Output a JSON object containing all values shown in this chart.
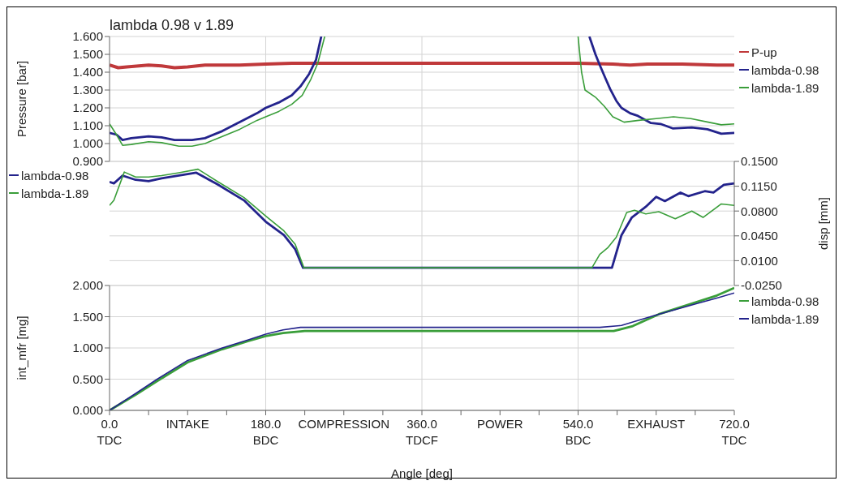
{
  "chart_data": [
    {
      "type": "line",
      "title": "lambda 0.98 v 1.89",
      "ylabel": "Pressure [bar]",
      "xlim": [
        0,
        720
      ],
      "ylim": [
        0.9,
        1.6
      ],
      "yticks": [
        {
          "value": 0.9,
          "label": "0.900"
        },
        {
          "value": 1.0,
          "label": "1.000"
        },
        {
          "value": 1.1,
          "label": "1.100"
        },
        {
          "value": 1.2,
          "label": "1.200"
        },
        {
          "value": 1.3,
          "label": "1.300"
        },
        {
          "value": 1.4,
          "label": "1.400"
        },
        {
          "value": 1.5,
          "label": "1.500"
        },
        {
          "value": 1.6,
          "label": "1.600"
        }
      ],
      "tick_labels": "y",
      "grid": "y",
      "legend": "right",
      "line_style": "solid",
      "marker": "none",
      "ref_lines": [
        {
          "axis": "x",
          "value": 180,
          "color": "#d4d4d4"
        },
        {
          "axis": "x",
          "value": 360,
          "color": "#d4d4d4"
        },
        {
          "axis": "x",
          "value": 540,
          "color": "#d4d4d4"
        }
      ],
      "series": [
        {
          "name": "P-up",
          "color": "#c0393b",
          "x": [
            0,
            10,
            20,
            45,
            60,
            75,
            90,
            110,
            150,
            180,
            210,
            270,
            360,
            450,
            540,
            580,
            600,
            620,
            660,
            700,
            720
          ],
          "values": [
            1.44,
            1.425,
            1.43,
            1.44,
            1.435,
            1.425,
            1.43,
            1.44,
            1.44,
            1.445,
            1.45,
            1.45,
            1.45,
            1.45,
            1.45,
            1.445,
            1.44,
            1.445,
            1.445,
            1.44,
            1.44
          ]
        },
        {
          "name": "lambda-0.98",
          "color": "#23238c",
          "x": [
            0,
            8,
            15,
            25,
            45,
            60,
            75,
            95,
            110,
            130,
            150,
            170,
            180,
            195,
            210,
            220,
            230,
            238,
            244,
            400,
            553,
            560,
            565,
            572,
            577,
            584,
            590,
            600,
            609,
            624,
            635,
            649,
            671,
            689,
            705,
            720
          ],
          "values": [
            1.06,
            1.05,
            1.02,
            1.03,
            1.04,
            1.035,
            1.02,
            1.02,
            1.03,
            1.07,
            1.12,
            1.17,
            1.2,
            1.23,
            1.27,
            1.32,
            1.39,
            1.47,
            1.6,
            null,
            1.6,
            1.5,
            1.44,
            1.36,
            1.305,
            1.24,
            1.2,
            1.17,
            1.155,
            1.115,
            1.11,
            1.085,
            1.09,
            1.08,
            1.055,
            1.06
          ]
        },
        {
          "name": "lambda-1.89",
          "color": "#3a9e3a",
          "x": [
            0,
            8,
            15,
            25,
            45,
            60,
            80,
            95,
            110,
            130,
            150,
            170,
            180,
            195,
            210,
            222,
            232,
            240,
            248,
            400,
            540,
            544,
            548,
            560,
            570,
            580,
            593,
            610,
            630,
            650,
            670,
            690,
            705,
            720
          ],
          "values": [
            1.11,
            1.05,
            0.99,
            0.995,
            1.01,
            1.005,
            0.985,
            0.985,
            1.0,
            1.04,
            1.08,
            1.13,
            1.15,
            1.18,
            1.22,
            1.27,
            1.36,
            1.45,
            1.6,
            null,
            1.6,
            1.4,
            1.3,
            1.26,
            1.21,
            1.15,
            1.12,
            1.13,
            1.14,
            1.15,
            1.14,
            1.12,
            1.105,
            1.11
          ]
        }
      ]
    },
    {
      "type": "line",
      "y2label": "disp [mm]",
      "xlim": [
        0,
        720
      ],
      "y2lim": [
        -0.025,
        0.15
      ],
      "y2ticks": [
        {
          "value": -0.025,
          "label": "-0.0250"
        },
        {
          "value": 0.01,
          "label": "0.0100"
        },
        {
          "value": 0.045,
          "label": "0.0450"
        },
        {
          "value": 0.08,
          "label": "0.0800"
        },
        {
          "value": 0.115,
          "label": "0.1150"
        },
        {
          "value": 0.15,
          "label": "0.1500"
        }
      ],
      "tick_labels": "y2",
      "grid": "y",
      "legend": "left",
      "line_style": "solid",
      "marker": "none",
      "ref_lines": [
        {
          "axis": "x",
          "value": 180,
          "color": "#d4d4d4"
        },
        {
          "axis": "x",
          "value": 360,
          "color": "#d4d4d4"
        },
        {
          "axis": "x",
          "value": 540,
          "color": "#d4d4d4"
        }
      ],
      "series": [
        {
          "name": "lambda-0.98",
          "color": "#23238c",
          "axis": "y2",
          "x": [
            0,
            5,
            15,
            30,
            45,
            60,
            80,
            100,
            124,
            155,
            180,
            201,
            214,
            223,
            400,
            579,
            590,
            602,
            618,
            630,
            640,
            658,
            667,
            686,
            696,
            708,
            720
          ],
          "values": [
            0.121,
            0.119,
            0.13,
            0.124,
            0.122,
            0.126,
            0.13,
            0.134,
            0.118,
            0.095,
            0.065,
            0.046,
            0.026,
            0.0,
            0.0,
            0.0,
            0.046,
            0.071,
            0.086,
            0.1,
            0.094,
            0.106,
            0.101,
            0.108,
            0.106,
            0.117,
            0.119
          ]
        },
        {
          "name": "lambda-1.89",
          "color": "#3a9e3a",
          "axis": "y2",
          "x": [
            0,
            5,
            17,
            30,
            45,
            60,
            80,
            102,
            124,
            155,
            180,
            201,
            214,
            224,
            400,
            556,
            565,
            574,
            584,
            596,
            605,
            618,
            633,
            652,
            671,
            684,
            705,
            720
          ],
          "values": [
            0.088,
            0.095,
            0.135,
            0.128,
            0.128,
            0.13,
            0.134,
            0.139,
            0.122,
            0.099,
            0.073,
            0.052,
            0.033,
            0.0,
            0.0,
            0.0,
            0.019,
            0.028,
            0.043,
            0.078,
            0.081,
            0.076,
            0.079,
            0.069,
            0.08,
            0.071,
            0.09,
            0.088
          ]
        }
      ]
    },
    {
      "type": "line",
      "xlabel": "Angle [deg]",
      "ylabel": "int_mfr [mg]",
      "xlim": [
        0,
        720
      ],
      "xticks": [
        {
          "value": 0,
          "label": "0.0\nTDC"
        },
        {
          "value": 45,
          "label": null
        },
        {
          "value": 90,
          "label": "INTAKE"
        },
        {
          "value": 135,
          "label": null
        },
        {
          "value": 180,
          "label": "180.0\nBDC"
        },
        {
          "value": 225,
          "label": null
        },
        {
          "value": 270,
          "label": "COMPRESSION"
        },
        {
          "value": 315,
          "label": null
        },
        {
          "value": 360,
          "label": "360.0\nTDCF"
        },
        {
          "value": 405,
          "label": null
        },
        {
          "value": 450,
          "label": "POWER"
        },
        {
          "value": 495,
          "label": null
        },
        {
          "value": 540,
          "label": "540.0\nBDC"
        },
        {
          "value": 585,
          "label": null
        },
        {
          "value": 630,
          "label": "EXHAUST"
        },
        {
          "value": 675,
          "label": null
        },
        {
          "value": 720,
          "label": "720.0\nTDC"
        }
      ],
      "ylim": [
        0,
        2
      ],
      "yticks": [
        {
          "value": 0,
          "label": "0.000"
        },
        {
          "value": 0.5,
          "label": "0.500"
        },
        {
          "value": 1,
          "label": "1.000"
        },
        {
          "value": 1.5,
          "label": "1.500"
        },
        {
          "value": 2,
          "label": "2.000"
        }
      ],
      "grid": "y",
      "legend": "right",
      "line_style": "solid",
      "marker": "none",
      "ref_lines": [
        {
          "axis": "x",
          "value": 180,
          "color": "#d4d4d4"
        },
        {
          "axis": "x",
          "value": 360,
          "color": "#d4d4d4"
        },
        {
          "axis": "x",
          "value": 540,
          "color": "#d4d4d4"
        }
      ],
      "series": [
        {
          "name": "lambda-0.98",
          "color": "#3a9e3a",
          "x": [
            0,
            30,
            55,
            90,
            130,
            160,
            180,
            200,
            225,
            360,
            540,
            581,
            603,
            633,
            671,
            700,
            720
          ],
          "values": [
            0,
            0.25,
            0.47,
            0.77,
            0.98,
            1.11,
            1.19,
            1.24,
            1.27,
            1.27,
            1.27,
            1.27,
            1.35,
            1.54,
            1.71,
            1.84,
            1.96
          ]
        },
        {
          "name": "lambda-1.89",
          "color": "#23238c",
          "x": [
            0,
            30,
            55,
            90,
            130,
            160,
            180,
            200,
            220,
            360,
            540,
            565,
            590,
            628,
            677,
            700,
            720
          ],
          "values": [
            0,
            0.27,
            0.5,
            0.8,
            1.0,
            1.13,
            1.22,
            1.29,
            1.33,
            1.33,
            1.33,
            1.33,
            1.36,
            1.52,
            1.71,
            1.8,
            1.88
          ]
        }
      ]
    }
  ]
}
